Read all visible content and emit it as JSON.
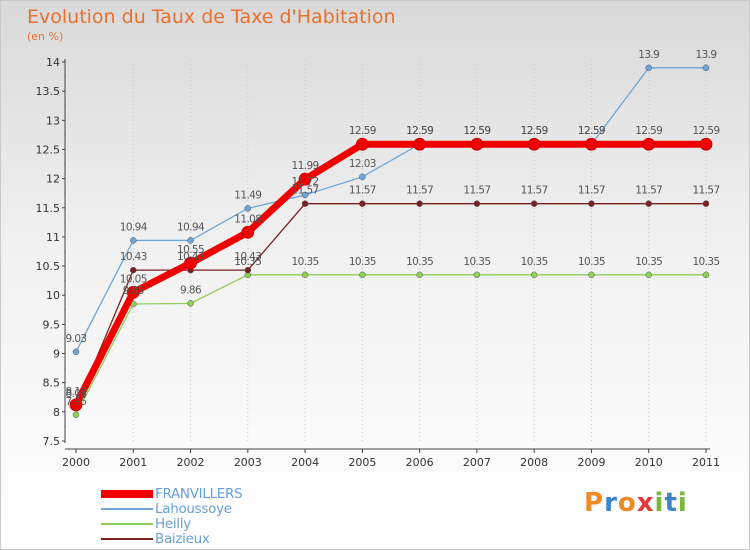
{
  "header": {
    "title": "Evolution du Taux de Taxe d'Habitation",
    "unit": "(en %)"
  },
  "logo": {
    "text": "Proxiti",
    "letters": [
      {
        "ch": "P",
        "color": "#f08a24"
      },
      {
        "ch": "r",
        "color": "#3a86c8"
      },
      {
        "ch": "o",
        "color": "#f08a24"
      },
      {
        "ch": "x",
        "color": "#e23a3a"
      },
      {
        "ch": "i",
        "color": "#79b83a"
      },
      {
        "ch": "t",
        "color": "#3a86c8"
      },
      {
        "ch": "i",
        "color": "#79b83a"
      }
    ]
  },
  "chart_data": {
    "type": "line",
    "title": "Evolution du Taux de Taxe d'Habitation",
    "ylabel": "(en %)",
    "xlabel": "",
    "ylim": [
      7.5,
      14
    ],
    "y_ticks": [
      "7.5",
      "8",
      "8.5",
      "9",
      "9.5",
      "10",
      "10.5",
      "11",
      "11.5",
      "12",
      "12.5",
      "13",
      "13.5",
      "14"
    ],
    "x": [
      "2000",
      "2001",
      "2002",
      "2003",
      "2004",
      "2005",
      "2006",
      "2007",
      "2008",
      "2009",
      "2010",
      "2011"
    ],
    "legend_position": "bottom-left",
    "series": [
      {
        "name": "Lahoussoye",
        "color": "#6ea6d8",
        "values": [
          9.03,
          10.94,
          10.94,
          11.49,
          11.72,
          12.03,
          12.59,
          12.59,
          12.59,
          12.59,
          13.9,
          13.9
        ],
        "labels": [
          "9.03",
          "10.94",
          "10.94",
          "11.49",
          "11.72",
          "12.03",
          "12.59",
          "12.59",
          "12.59",
          "12.59",
          "13.9",
          "13.9"
        ]
      },
      {
        "name": "Heilly",
        "color": "#8fd05a",
        "values": [
          7.95,
          9.85,
          9.86,
          10.35,
          10.35,
          10.35,
          10.35,
          10.35,
          10.35,
          10.35,
          10.35,
          10.35
        ],
        "labels": [
          "7.95",
          "9.85",
          "9.86",
          "10.35",
          "10.35",
          "10.35",
          "10.35",
          "10.35",
          "10.35",
          "10.35",
          "10.35",
          "10.35"
        ]
      },
      {
        "name": "Baizieux",
        "color": "#7a2020",
        "values": [
          8.08,
          10.43,
          10.43,
          10.43,
          11.57,
          11.57,
          11.57,
          11.57,
          11.57,
          11.57,
          11.57,
          11.57
        ],
        "labels": [
          "8.08",
          "10.43",
          "10.43",
          "10.43",
          "11.57",
          "11.57",
          "11.57",
          "11.57",
          "11.57",
          "11.57",
          "11.57",
          "11.57"
        ]
      },
      {
        "name": "FRANVILLERS",
        "color": "#f00000",
        "values": [
          8.12,
          10.05,
          10.55,
          11.08,
          11.99,
          12.59,
          12.59,
          12.59,
          12.59,
          12.59,
          12.59,
          12.59
        ],
        "labels": [
          "8.12",
          "10.05",
          "10.55",
          "11.08",
          "11.99",
          "12.59",
          "12.59",
          "12.59",
          "12.59",
          "12.59",
          "12.59",
          "12.59"
        ]
      }
    ],
    "legend_order": [
      "FRANVILLERS",
      "Lahoussoye",
      "Heilly",
      "Baizieux"
    ]
  }
}
